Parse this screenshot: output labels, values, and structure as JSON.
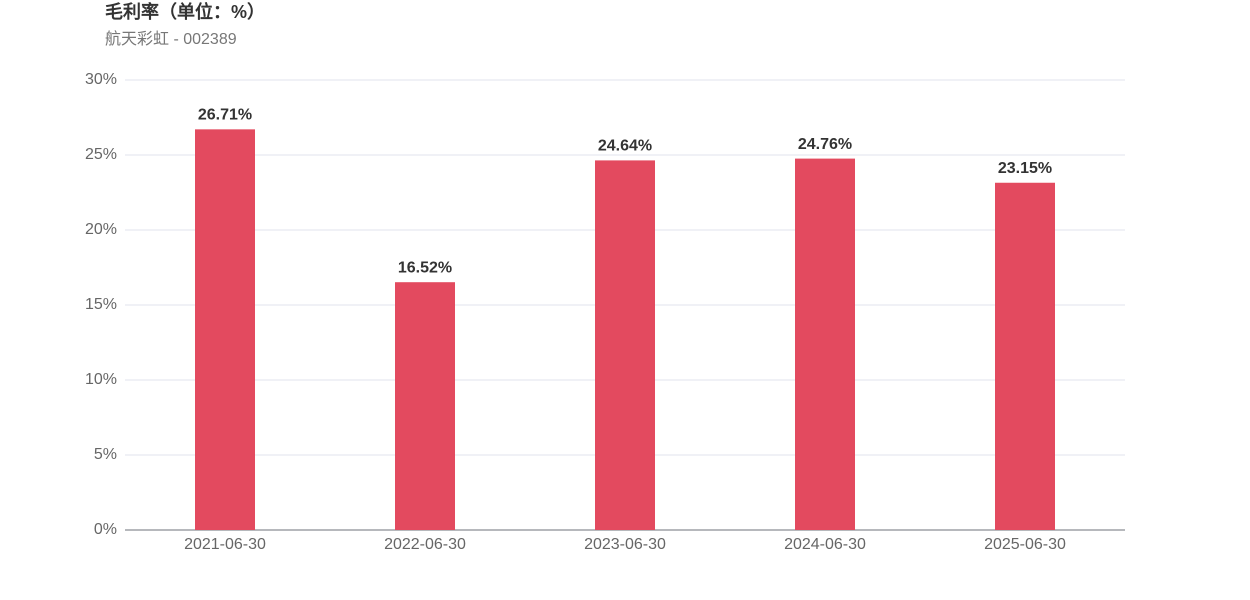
{
  "chart_data": {
    "type": "bar",
    "title": "毛利率（单位：%）",
    "subtitle": "航天彩虹 - 002389",
    "categories": [
      "2021-06-30",
      "2022-06-30",
      "2023-06-30",
      "2024-06-30",
      "2025-06-30"
    ],
    "values": [
      26.71,
      16.52,
      24.64,
      24.76,
      23.15
    ],
    "value_labels": [
      "26.71%",
      "16.52%",
      "24.64%",
      "24.76%",
      "23.15%"
    ],
    "color": "#e34a5f",
    "ylim": [
      0,
      30
    ],
    "yticks": [
      {
        "value": 0,
        "label": "0%"
      },
      {
        "value": 5,
        "label": "5%"
      },
      {
        "value": 10,
        "label": "10%"
      },
      {
        "value": 15,
        "label": "15%"
      },
      {
        "value": 20,
        "label": "20%"
      },
      {
        "value": 25,
        "label": "25%"
      },
      {
        "value": 30,
        "label": "30%"
      }
    ],
    "grid": true
  }
}
